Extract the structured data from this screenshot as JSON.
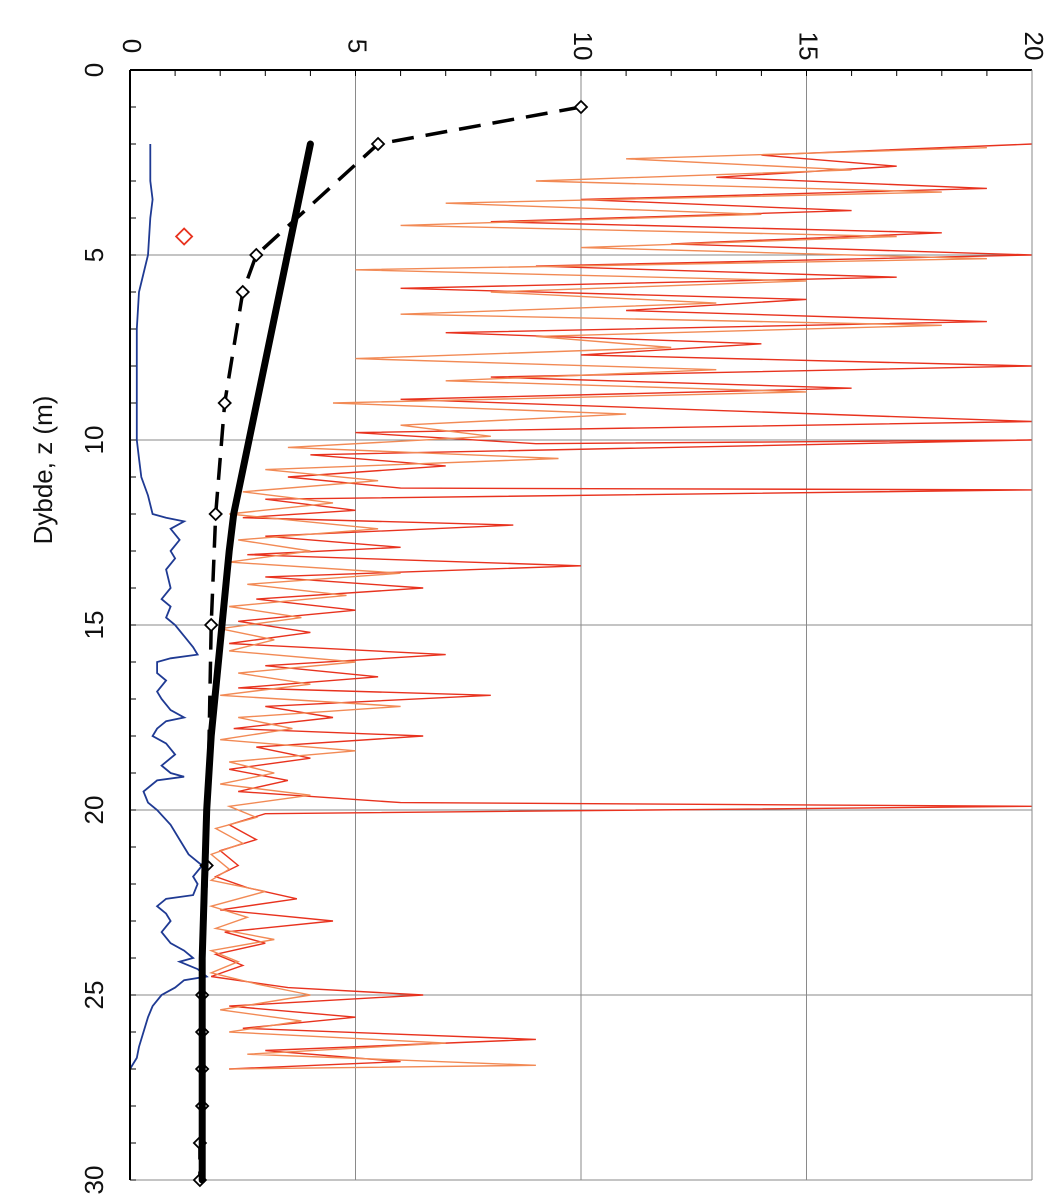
{
  "chart_data": {
    "type": "line",
    "title": "",
    "xlabel": "",
    "ylabel": "Dybde, z (m)",
    "x_range": [
      0,
      20
    ],
    "y_range": [
      0,
      30
    ],
    "y_inverted": true,
    "x_axis_position": "top",
    "x_tick_labels_rotated": true,
    "x_ticks": [
      "0",
      "5",
      "10",
      "15",
      "20"
    ],
    "y_ticks": [
      "0",
      "5",
      "10",
      "15",
      "20",
      "25",
      "30"
    ],
    "grid": true,
    "legend": "none",
    "colors": {
      "grid": "#8a8a8a",
      "axis": "#000000",
      "series_dashed": "#000000",
      "series_solid": "#000000",
      "series_blue": "#1f3a93",
      "series_red": "#e8321e",
      "series_orange": "#f28a55",
      "marker_red": "#e8321e"
    },
    "series": [
      {
        "style": "dashed-with-diamond-markers",
        "color": "#000000",
        "points": [
          [
            10.0,
            1.0
          ],
          [
            5.5,
            2.0
          ],
          [
            2.8,
            5.0
          ],
          [
            2.5,
            6.0
          ],
          [
            2.1,
            9.0
          ],
          [
            1.9,
            12.0
          ],
          [
            1.8,
            15.0
          ],
          [
            1.7,
            21.5
          ],
          [
            1.6,
            25.0
          ],
          [
            1.6,
            26.0
          ],
          [
            1.6,
            27.0
          ],
          [
            1.6,
            28.0
          ],
          [
            1.55,
            29.0
          ],
          [
            1.55,
            30.0
          ]
        ]
      },
      {
        "style": "solid-thick",
        "color": "#000000",
        "points": [
          [
            4.0,
            2.0
          ],
          [
            2.3,
            12.0
          ],
          [
            2.2,
            13.0
          ],
          [
            1.8,
            18.0
          ],
          [
            1.7,
            20.0
          ],
          [
            1.6,
            24.0
          ],
          [
            1.6,
            25.5
          ],
          [
            1.6,
            30.0
          ]
        ]
      },
      {
        "style": "solid-thin",
        "color": "#1f3a93",
        "points": [
          [
            0.45,
            2.0
          ],
          [
            0.45,
            3.0
          ],
          [
            0.5,
            3.5
          ],
          [
            0.45,
            4.0
          ],
          [
            0.4,
            5.0
          ],
          [
            0.3,
            5.5
          ],
          [
            0.2,
            6.0
          ],
          [
            0.15,
            7.0
          ],
          [
            0.15,
            9.0
          ],
          [
            0.15,
            10.0
          ],
          [
            0.2,
            10.5
          ],
          [
            0.25,
            11.0
          ],
          [
            0.4,
            11.5
          ],
          [
            0.5,
            12.0
          ],
          [
            0.8,
            12.1
          ],
          [
            1.2,
            12.2
          ],
          [
            0.9,
            12.4
          ],
          [
            1.1,
            12.7
          ],
          [
            0.9,
            13.0
          ],
          [
            1.0,
            13.2
          ],
          [
            0.8,
            13.5
          ],
          [
            0.9,
            14.0
          ],
          [
            0.7,
            14.3
          ],
          [
            0.9,
            14.5
          ],
          [
            0.8,
            14.8
          ],
          [
            1.0,
            15.0
          ],
          [
            1.2,
            15.3
          ],
          [
            1.4,
            15.6
          ],
          [
            1.5,
            15.8
          ],
          [
            0.9,
            15.9
          ],
          [
            0.6,
            16.0
          ],
          [
            0.6,
            16.3
          ],
          [
            0.8,
            16.5
          ],
          [
            0.6,
            16.8
          ],
          [
            0.7,
            17.0
          ],
          [
            0.9,
            17.3
          ],
          [
            1.2,
            17.5
          ],
          [
            0.8,
            17.6
          ],
          [
            0.6,
            17.8
          ],
          [
            0.5,
            18.0
          ],
          [
            0.8,
            18.2
          ],
          [
            1.0,
            18.5
          ],
          [
            0.7,
            18.8
          ],
          [
            0.9,
            19.0
          ],
          [
            1.2,
            19.1
          ],
          [
            0.6,
            19.2
          ],
          [
            0.3,
            19.5
          ],
          [
            0.4,
            19.8
          ],
          [
            0.6,
            20.0
          ],
          [
            0.9,
            20.4
          ],
          [
            1.1,
            20.8
          ],
          [
            1.3,
            21.2
          ],
          [
            1.6,
            21.5
          ],
          [
            1.4,
            21.8
          ],
          [
            1.5,
            22.0
          ],
          [
            1.4,
            22.3
          ],
          [
            0.8,
            22.4
          ],
          [
            0.6,
            22.6
          ],
          [
            0.8,
            22.8
          ],
          [
            0.9,
            23.0
          ],
          [
            0.7,
            23.3
          ],
          [
            0.9,
            23.6
          ],
          [
            1.2,
            23.8
          ],
          [
            1.4,
            24.0
          ],
          [
            1.1,
            24.1
          ],
          [
            1.5,
            24.3
          ],
          [
            1.7,
            24.5
          ],
          [
            1.2,
            24.6
          ],
          [
            1.0,
            24.8
          ],
          [
            0.7,
            25.0
          ],
          [
            0.5,
            25.3
          ],
          [
            0.4,
            25.6
          ],
          [
            0.3,
            26.0
          ],
          [
            0.2,
            26.4
          ],
          [
            0.15,
            26.7
          ],
          [
            0.0,
            27.0
          ]
        ]
      },
      {
        "style": "thin-spiky",
        "color": "#e8321e",
        "points": [
          [
            20.0,
            2.0
          ],
          [
            14.0,
            2.3
          ],
          [
            17.0,
            2.6
          ],
          [
            13.0,
            2.9
          ],
          [
            19.0,
            3.2
          ],
          [
            10.0,
            3.5
          ],
          [
            16.0,
            3.8
          ],
          [
            8.0,
            4.1
          ],
          [
            18.0,
            4.4
          ],
          [
            12.0,
            4.7
          ],
          [
            20.0,
            5.0
          ],
          [
            9.0,
            5.3
          ],
          [
            17.0,
            5.6
          ],
          [
            6.0,
            5.9
          ],
          [
            15.0,
            6.2
          ],
          [
            11.0,
            6.5
          ],
          [
            19.0,
            6.8
          ],
          [
            7.0,
            7.1
          ],
          [
            14.0,
            7.4
          ],
          [
            10.0,
            7.7
          ],
          [
            20.0,
            8.0
          ],
          [
            8.0,
            8.3
          ],
          [
            16.0,
            8.6
          ],
          [
            6.0,
            8.9
          ],
          [
            13.0,
            9.2
          ],
          [
            20.0,
            9.5
          ],
          [
            5.0,
            9.8
          ],
          [
            9.0,
            10.1
          ],
          [
            20.0,
            10.0
          ],
          [
            4.0,
            10.4
          ],
          [
            7.0,
            10.7
          ],
          [
            3.5,
            11.0
          ],
          [
            6.0,
            11.3
          ],
          [
            20.0,
            11.35
          ],
          [
            3.0,
            11.6
          ],
          [
            5.0,
            11.9
          ],
          [
            2.5,
            12.1
          ],
          [
            8.5,
            12.3
          ],
          [
            3.0,
            12.6
          ],
          [
            6.0,
            12.9
          ],
          [
            2.6,
            13.1
          ],
          [
            10.0,
            13.4
          ],
          [
            3.0,
            13.7
          ],
          [
            6.5,
            14.0
          ],
          [
            2.8,
            14.3
          ],
          [
            5.0,
            14.6
          ],
          [
            2.4,
            14.9
          ],
          [
            4.0,
            15.2
          ],
          [
            2.2,
            15.5
          ],
          [
            7.0,
            15.8
          ],
          [
            3.0,
            16.1
          ],
          [
            5.5,
            16.4
          ],
          [
            2.4,
            16.7
          ],
          [
            8.0,
            16.9
          ],
          [
            3.0,
            17.2
          ],
          [
            4.5,
            17.5
          ],
          [
            2.3,
            17.8
          ],
          [
            6.5,
            18.0
          ],
          [
            2.8,
            18.3
          ],
          [
            4.0,
            18.6
          ],
          [
            2.2,
            18.9
          ],
          [
            3.5,
            19.2
          ],
          [
            2.4,
            19.5
          ],
          [
            6.0,
            19.8
          ],
          [
            20.0,
            19.9
          ],
          [
            3.0,
            20.1
          ],
          [
            2.2,
            20.4
          ],
          [
            2.8,
            20.8
          ],
          [
            2.0,
            21.1
          ],
          [
            2.4,
            21.5
          ],
          [
            1.9,
            21.8
          ],
          [
            2.6,
            22.1
          ],
          [
            3.7,
            22.4
          ],
          [
            2.0,
            22.7
          ],
          [
            4.5,
            23.0
          ],
          [
            2.1,
            23.3
          ],
          [
            3.0,
            23.6
          ],
          [
            1.9,
            23.9
          ],
          [
            2.5,
            24.2
          ],
          [
            1.8,
            24.5
          ],
          [
            3.5,
            24.8
          ],
          [
            6.5,
            25.0
          ],
          [
            2.2,
            25.3
          ],
          [
            5.0,
            25.6
          ],
          [
            2.5,
            25.9
          ],
          [
            9.0,
            26.2
          ],
          [
            3.0,
            26.5
          ],
          [
            6.0,
            26.8
          ],
          [
            2.2,
            27.0
          ]
        ]
      },
      {
        "style": "thin-spiky",
        "color": "#f28a55",
        "points": [
          [
            19.0,
            2.1
          ],
          [
            11.0,
            2.4
          ],
          [
            16.0,
            2.7
          ],
          [
            9.0,
            3.0
          ],
          [
            18.0,
            3.3
          ],
          [
            7.0,
            3.6
          ],
          [
            14.0,
            3.9
          ],
          [
            6.0,
            4.2
          ],
          [
            17.0,
            4.5
          ],
          [
            10.0,
            4.8
          ],
          [
            19.0,
            5.1
          ],
          [
            5.0,
            5.4
          ],
          [
            15.0,
            5.7
          ],
          [
            8.0,
            6.0
          ],
          [
            13.0,
            6.3
          ],
          [
            6.0,
            6.6
          ],
          [
            18.0,
            6.9
          ],
          [
            9.0,
            7.2
          ],
          [
            12.0,
            7.5
          ],
          [
            5.0,
            7.8
          ],
          [
            13.0,
            8.1
          ],
          [
            7.0,
            8.4
          ],
          [
            15.0,
            8.7
          ],
          [
            4.5,
            9.0
          ],
          [
            11.0,
            9.3
          ],
          [
            6.0,
            9.6
          ],
          [
            8.0,
            9.9
          ],
          [
            3.5,
            10.2
          ],
          [
            9.5,
            10.5
          ],
          [
            3.0,
            10.8
          ],
          [
            5.5,
            11.1
          ],
          [
            2.5,
            11.4
          ],
          [
            4.5,
            11.7
          ],
          [
            2.2,
            12.0
          ],
          [
            5.5,
            12.4
          ],
          [
            2.4,
            12.7
          ],
          [
            4.0,
            13.0
          ],
          [
            2.2,
            13.3
          ],
          [
            6.0,
            13.6
          ],
          [
            2.6,
            13.9
          ],
          [
            4.8,
            14.2
          ],
          [
            2.2,
            14.5
          ],
          [
            3.8,
            14.8
          ],
          [
            2.0,
            15.1
          ],
          [
            3.2,
            15.4
          ],
          [
            2.2,
            15.7
          ],
          [
            5.0,
            16.0
          ],
          [
            2.4,
            16.3
          ],
          [
            4.0,
            16.6
          ],
          [
            2.0,
            16.9
          ],
          [
            6.0,
            17.2
          ],
          [
            2.4,
            17.5
          ],
          [
            3.6,
            17.8
          ],
          [
            2.0,
            18.1
          ],
          [
            5.0,
            18.4
          ],
          [
            2.2,
            18.7
          ],
          [
            3.2,
            19.0
          ],
          [
            2.0,
            19.3
          ],
          [
            4.0,
            19.6
          ],
          [
            2.2,
            19.9
          ],
          [
            2.8,
            20.2
          ],
          [
            1.9,
            20.5
          ],
          [
            2.5,
            20.9
          ],
          [
            1.8,
            21.2
          ],
          [
            2.2,
            21.6
          ],
          [
            1.8,
            21.9
          ],
          [
            3.0,
            22.2
          ],
          [
            1.8,
            22.6
          ],
          [
            2.6,
            22.9
          ],
          [
            1.9,
            23.2
          ],
          [
            3.2,
            23.5
          ],
          [
            1.8,
            23.8
          ],
          [
            2.4,
            24.1
          ],
          [
            1.8,
            24.4
          ],
          [
            2.8,
            24.7
          ],
          [
            4.0,
            25.0
          ],
          [
            2.0,
            25.4
          ],
          [
            3.8,
            25.7
          ],
          [
            2.2,
            26.0
          ],
          [
            7.0,
            26.3
          ],
          [
            2.6,
            26.6
          ],
          [
            9.0,
            26.9
          ],
          [
            2.2,
            27.0
          ]
        ]
      },
      {
        "style": "single-diamond-marker",
        "color": "#e8321e",
        "points": [
          [
            1.2,
            4.5
          ]
        ]
      }
    ]
  }
}
